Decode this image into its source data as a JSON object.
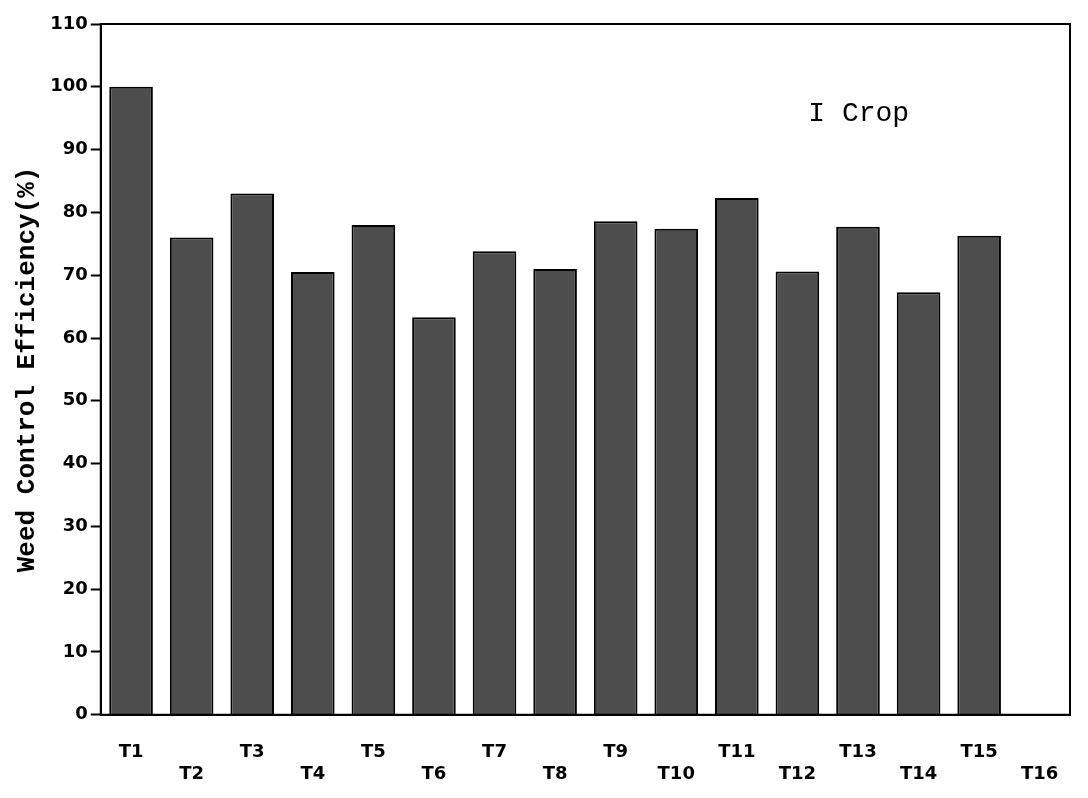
{
  "chart_data": {
    "type": "bar",
    "ylabel": "Weed Control Efficiency(%)",
    "annotations": [
      "I Crop"
    ],
    "categories": [
      "T1",
      "T2",
      "T3",
      "T4",
      "T5",
      "T6",
      "T7",
      "T8",
      "T9",
      "T10",
      "T11",
      "T12",
      "T13",
      "T14",
      "T15",
      "T16"
    ],
    "values": [
      100,
      76,
      83,
      70.5,
      78,
      63.3,
      73.8,
      71,
      78.6,
      77.4,
      82.3,
      70.6,
      77.7,
      67.3,
      76.3,
      null
    ],
    "color": "#4d4d4d",
    "ylim": [
      0,
      110
    ],
    "yticks": [
      0,
      10,
      20,
      30,
      40,
      50,
      60,
      70,
      80,
      90,
      100,
      110
    ],
    "grid": false,
    "legend": false
  }
}
